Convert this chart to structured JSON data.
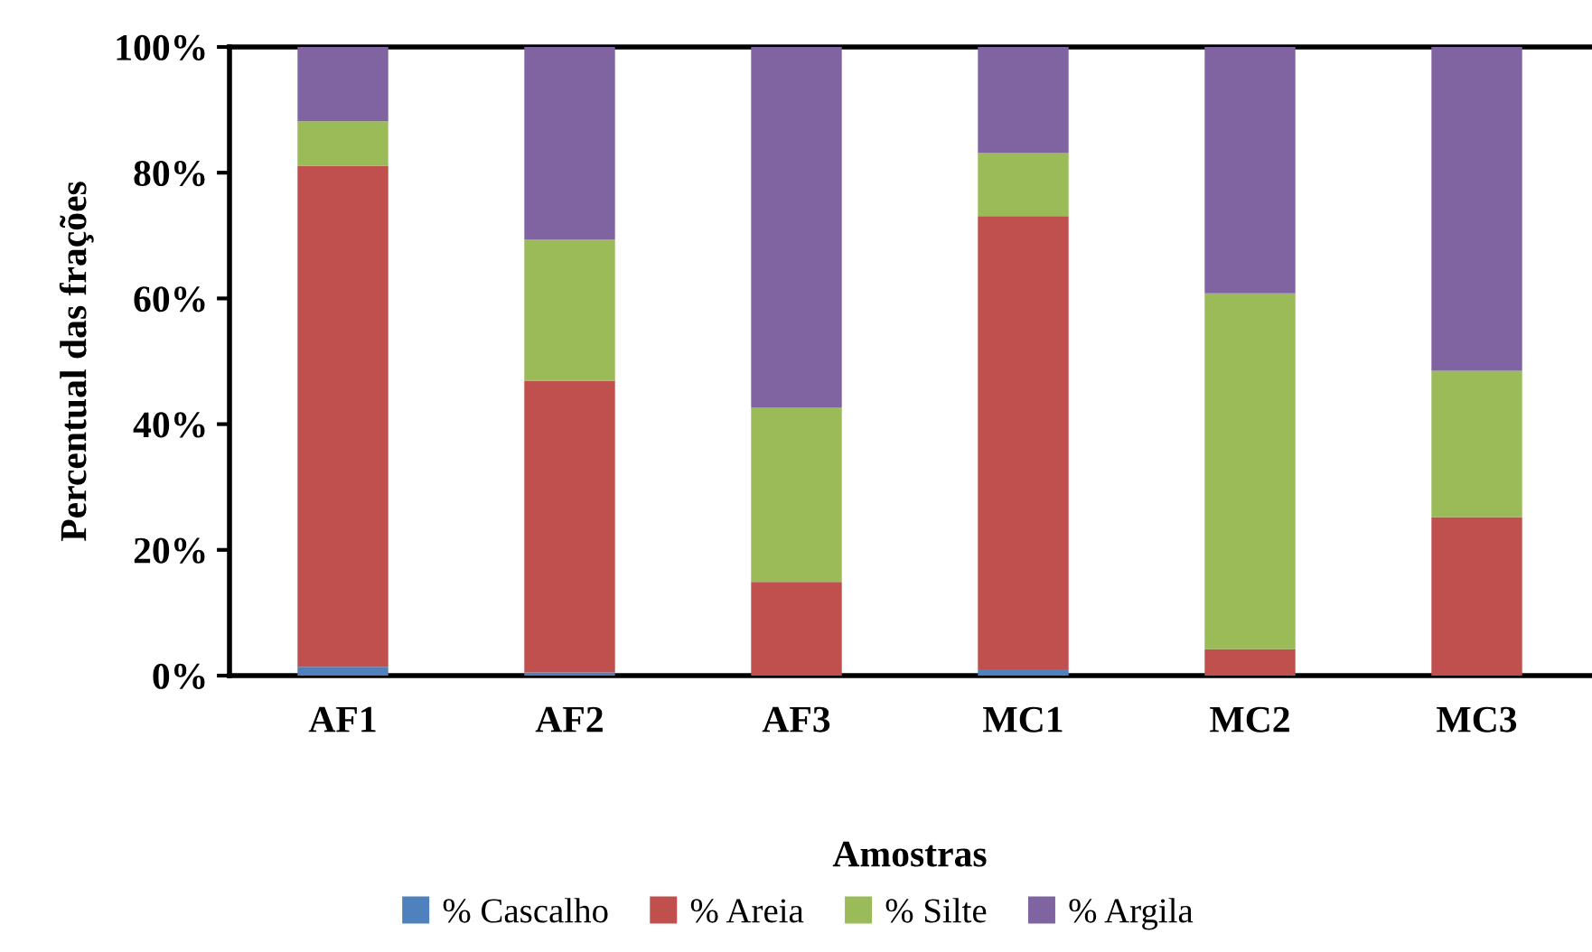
{
  "chart_data": {
    "type": "bar",
    "stacked": true,
    "xlabel": "Amostras",
    "ylabel": "Percentual das frações",
    "categories": [
      "AF1",
      "AF2",
      "AF3",
      "MC1",
      "MC2",
      "MC3"
    ],
    "series": [
      {
        "name": "% Cascalho",
        "color": "#4f81bd",
        "values": [
          1.4,
          0.5,
          0,
          1.0,
          0,
          0
        ]
      },
      {
        "name": "% Areia",
        "color": "#c0504d",
        "values": [
          79.7,
          46.4,
          14.9,
          72.1,
          4.2,
          25.2
        ]
      },
      {
        "name": "% Silte",
        "color": "#9bbb59",
        "values": [
          7.1,
          22.5,
          27.7,
          10.0,
          56.6,
          23.3
        ]
      },
      {
        "name": "% Argila",
        "color": "#8064a2",
        "values": [
          11.8,
          30.6,
          57.4,
          16.9,
          39.2,
          51.5
        ]
      }
    ],
    "ylim": [
      0,
      100
    ],
    "yticks": [
      {
        "value": 0,
        "label": "0%"
      },
      {
        "value": 20,
        "label": "20%"
      },
      {
        "value": 40,
        "label": "40%"
      },
      {
        "value": 60,
        "label": "60%"
      },
      {
        "value": 80,
        "label": "80%"
      },
      {
        "value": 100,
        "label": "100%"
      }
    ],
    "grid": false,
    "legend": "bottom"
  }
}
